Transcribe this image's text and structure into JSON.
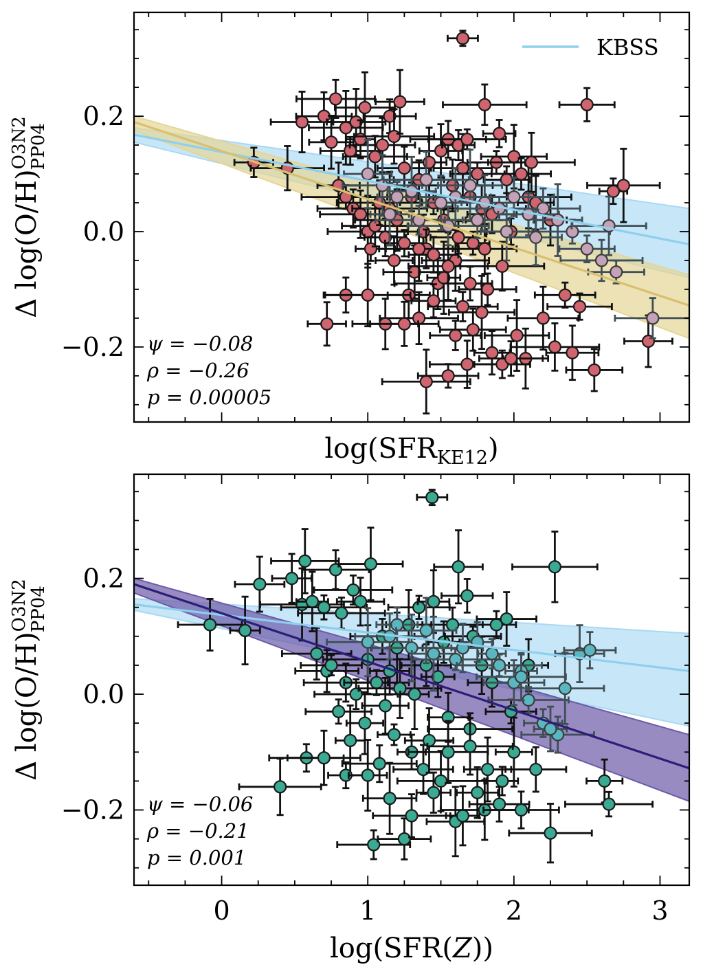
{
  "chart_data": [
    {
      "type": "scatter",
      "panel": "top",
      "xlabel_main": "log(SFR",
      "xlabel_sub": "KE12",
      "xlabel_close": ")",
      "ylabel_main": "Δ log(O/H)",
      "ylabel_sup": "O3N2",
      "ylabel_sub": "PP04",
      "xlim": [
        -0.6,
        3.2
      ],
      "ylim": [
        -0.33,
        0.38
      ],
      "x_ticks": [
        0,
        1,
        2,
        3
      ],
      "y_ticks": [
        -0.2,
        0.0,
        0.2
      ],
      "y_tick_labels": [
        "−0.2",
        "0.0",
        "0.2"
      ],
      "x_tick_labels": [],
      "point_color": "#d0646f",
      "kbss_point_color": "#c4a2b8",
      "legend": {
        "label": "KBSS",
        "color": "#8ecfee",
        "placement": "top-right"
      },
      "stats": {
        "psi": "ψ = −0.08",
        "rho": "ρ = −0.26",
        "p": "p = 0.00005"
      },
      "fits": [
        {
          "name": "KBSS",
          "color": "#8ecfee",
          "band_color": "#a9d9f3",
          "x": [
            -0.6,
            3.2
          ],
          "y": [
            0.168,
            -0.022
          ],
          "band_upper": [
            0.18,
            0.04
          ],
          "band_lower": [
            0.155,
            -0.08
          ]
        },
        {
          "name": "sample",
          "color": "#d8c070",
          "band_color": "#e5d596",
          "x": [
            -0.6,
            3.2
          ],
          "y": [
            0.19,
            -0.128
          ],
          "band_upper": [
            0.2,
            -0.075
          ],
          "band_lower": [
            0.175,
            -0.185
          ]
        }
      ],
      "points": [
        [
          0.22,
          0.12
        ],
        [
          0.45,
          0.11
        ],
        [
          0.55,
          0.19
        ],
        [
          0.7,
          0.2
        ],
        [
          0.75,
          0.155
        ],
        [
          0.78,
          0.23
        ],
        [
          0.85,
          0.18
        ],
        [
          0.92,
          0.19
        ],
        [
          0.98,
          0.215
        ],
        [
          0.88,
          0.14
        ],
        [
          0.95,
          0.16
        ],
        [
          1.05,
          0.13
        ],
        [
          1.1,
          0.15
        ],
        [
          1.15,
          0.2
        ],
        [
          1.18,
          0.165
        ],
        [
          1.22,
          0.225
        ],
        [
          1.25,
          0.11
        ],
        [
          0.8,
          0.08
        ],
        [
          0.85,
          0.06
        ],
        [
          0.9,
          0.04
        ],
        [
          0.95,
          0.03
        ],
        [
          1.0,
          0.0
        ],
        [
          1.02,
          -0.03
        ],
        [
          1.05,
          0.01
        ],
        [
          1.08,
          0.05
        ],
        [
          1.12,
          -0.01
        ],
        [
          1.15,
          0.04
        ],
        [
          1.18,
          -0.05
        ],
        [
          1.2,
          0.02
        ],
        [
          1.25,
          -0.02
        ],
        [
          1.3,
          0.06
        ],
        [
          1.32,
          -0.07
        ],
        [
          1.35,
          0.09
        ],
        [
          1.38,
          0.0
        ],
        [
          1.4,
          -0.03
        ],
        [
          1.42,
          0.12
        ],
        [
          1.45,
          0.05
        ],
        [
          1.48,
          -0.09
        ],
        [
          1.5,
          0.14
        ],
        [
          1.52,
          0.02
        ],
        [
          1.55,
          0.16
        ],
        [
          1.58,
          0.08
        ],
        [
          1.6,
          -0.05
        ],
        [
          1.62,
          0.15
        ],
        [
          1.65,
          0.11
        ],
        [
          1.68,
          0.16
        ],
        [
          1.7,
          0.06
        ],
        [
          1.72,
          -0.02
        ],
        [
          1.75,
          0.1
        ],
        [
          1.78,
          0.04
        ],
        [
          1.8,
          0.22
        ],
        [
          1.82,
          -0.1
        ],
        [
          1.85,
          0.03
        ],
        [
          1.88,
          0.12
        ],
        [
          1.9,
          0.17
        ],
        [
          1.92,
          -0.06
        ],
        [
          1.95,
          0.09
        ],
        [
          1.98,
          0.0
        ],
        [
          2.0,
          0.13
        ],
        [
          2.02,
          -0.18
        ],
        [
          2.05,
          0.1
        ],
        [
          2.08,
          -0.22
        ],
        [
          2.1,
          0.06
        ],
        [
          2.12,
          0.12
        ],
        [
          2.15,
          0.05
        ],
        [
          2.2,
          -0.15
        ],
        [
          2.25,
          0.02
        ],
        [
          2.28,
          -0.2
        ],
        [
          2.35,
          -0.11
        ],
        [
          2.4,
          -0.21
        ],
        [
          2.45,
          -0.13
        ],
        [
          2.5,
          0.22
        ],
        [
          2.55,
          -0.24
        ],
        [
          2.68,
          0.07
        ],
        [
          2.75,
          0.08
        ],
        [
          2.92,
          -0.19
        ],
        [
          1.28,
          -0.11
        ],
        [
          1.35,
          -0.15
        ],
        [
          1.4,
          -0.26
        ],
        [
          1.45,
          -0.12
        ],
        [
          1.52,
          -0.08
        ],
        [
          1.55,
          -0.25
        ],
        [
          1.6,
          -0.18
        ],
        [
          1.65,
          -0.13
        ],
        [
          1.68,
          -0.23
        ],
        [
          1.72,
          -0.17
        ],
        [
          1.78,
          -0.14
        ],
        [
          1.85,
          -0.21
        ],
        [
          1.92,
          -0.23
        ],
        [
          1.98,
          -0.22
        ],
        [
          0.72,
          -0.16
        ],
        [
          0.85,
          -0.11
        ],
        [
          1.0,
          -0.11
        ],
        [
          1.12,
          -0.16
        ],
        [
          1.25,
          -0.16
        ],
        [
          1.35,
          -0.03
        ],
        [
          1.45,
          -0.04
        ],
        [
          1.55,
          -0.06
        ],
        [
          1.62,
          -0.01
        ],
        [
          1.7,
          -0.09
        ],
        [
          1.8,
          -0.03
        ]
      ],
      "kbss_points": [
        [
          1.0,
          0.1
        ],
        [
          1.1,
          0.08
        ],
        [
          1.2,
          0.06
        ],
        [
          1.3,
          0.07
        ],
        [
          1.4,
          0.09
        ],
        [
          1.5,
          0.05
        ],
        [
          1.6,
          0.06
        ],
        [
          1.7,
          0.08
        ],
        [
          1.8,
          0.05
        ],
        [
          1.9,
          0.04
        ],
        [
          2.0,
          0.06
        ],
        [
          2.1,
          0.03
        ],
        [
          2.2,
          0.04
        ],
        [
          2.3,
          0.02
        ],
        [
          2.4,
          0.0
        ],
        [
          2.5,
          -0.03
        ],
        [
          2.6,
          -0.05
        ],
        [
          2.7,
          -0.07
        ],
        [
          2.95,
          -0.15
        ],
        [
          2.65,
          0.01
        ],
        [
          1.15,
          0.03
        ],
        [
          1.35,
          0.02
        ],
        [
          1.55,
          0.01
        ],
        [
          1.75,
          0.02
        ],
        [
          1.95,
          0.0
        ],
        [
          2.15,
          -0.01
        ]
      ],
      "top_marker": [
        1.65,
        0.335
      ]
    },
    {
      "type": "scatter",
      "panel": "bottom",
      "xlabel_main": "log(SFR(",
      "xlabel_italic": "Z",
      "xlabel_close": "))",
      "ylabel_main": "Δ log(O/H)",
      "ylabel_sup": "O3N2",
      "ylabel_sub": "PP04",
      "xlim": [
        -0.6,
        3.2
      ],
      "ylim": [
        -0.33,
        0.38
      ],
      "x_ticks": [
        0,
        1,
        2,
        3
      ],
      "x_tick_labels": [
        "0",
        "1",
        "2",
        "3"
      ],
      "y_ticks": [
        -0.2,
        0.0,
        0.2
      ],
      "y_tick_labels": [
        "−0.2",
        "0.0",
        "0.2"
      ],
      "point_color": "#3aaa93",
      "kbss_point_color": "#5ab7c2",
      "stats": {
        "psi": "ψ = −0.06",
        "rho": "ρ = −0.21",
        "p": "p = 0.001"
      },
      "fits": [
        {
          "name": "KBSS",
          "color": "#8ecfee",
          "band_color": "#a9d9f3",
          "x": [
            -0.6,
            3.2
          ],
          "y": [
            0.155,
            0.04
          ],
          "band_upper": [
            0.165,
            0.105
          ],
          "band_lower": [
            0.145,
            -0.055
          ]
        },
        {
          "name": "sample",
          "color": "#2c1e78",
          "band_color": "#6c5aa8",
          "x": [
            -0.6,
            3.2
          ],
          "y": [
            0.19,
            -0.128
          ],
          "band_upper": [
            0.2,
            -0.07
          ],
          "band_lower": [
            0.175,
            -0.185
          ]
        }
      ],
      "points": [
        [
          -0.08,
          0.12
        ],
        [
          0.16,
          0.11
        ],
        [
          0.26,
          0.19
        ],
        [
          0.4,
          -0.16
        ],
        [
          0.48,
          0.2
        ],
        [
          0.55,
          0.155
        ],
        [
          0.57,
          0.23
        ],
        [
          0.58,
          -0.11
        ],
        [
          0.62,
          0.16
        ],
        [
          0.65,
          0.07
        ],
        [
          0.7,
          0.15
        ],
        [
          0.72,
          0.04
        ],
        [
          0.75,
          0.05
        ],
        [
          0.78,
          0.215
        ],
        [
          0.8,
          -0.03
        ],
        [
          0.82,
          0.14
        ],
        [
          0.85,
          0.02
        ],
        [
          0.88,
          -0.08
        ],
        [
          0.9,
          0.18
        ],
        [
          0.92,
          0.0
        ],
        [
          0.95,
          0.16
        ],
        [
          0.98,
          -0.05
        ],
        [
          1.0,
          0.06
        ],
        [
          1.02,
          0.225
        ],
        [
          1.04,
          -0.26
        ],
        [
          1.06,
          0.02
        ],
        [
          1.08,
          -0.12
        ],
        [
          1.1,
          0.1
        ],
        [
          1.12,
          -0.02
        ],
        [
          1.15,
          0.04
        ],
        [
          1.18,
          -0.07
        ],
        [
          1.2,
          0.08
        ],
        [
          1.22,
          0.01
        ],
        [
          1.25,
          -0.25
        ],
        [
          1.28,
          0.12
        ],
        [
          1.3,
          -0.1
        ],
        [
          1.32,
          0.0
        ],
        [
          1.35,
          0.15
        ],
        [
          1.38,
          -0.13
        ],
        [
          1.4,
          0.05
        ],
        [
          1.42,
          -0.08
        ],
        [
          1.45,
          0.16
        ],
        [
          1.48,
          0.03
        ],
        [
          1.5,
          -0.15
        ],
        [
          1.52,
          0.09
        ],
        [
          1.55,
          -0.04
        ],
        [
          1.58,
          0.12
        ],
        [
          1.6,
          -0.22
        ],
        [
          1.62,
          0.22
        ],
        [
          1.65,
          -0.21
        ],
        [
          1.68,
          0.17
        ],
        [
          1.7,
          -0.06
        ],
        [
          1.72,
          0.1
        ],
        [
          1.75,
          -0.17
        ],
        [
          1.78,
          0.05
        ],
        [
          1.8,
          -0.2
        ],
        [
          1.85,
          0.02
        ],
        [
          1.88,
          0.12
        ],
        [
          1.9,
          -0.19
        ],
        [
          1.92,
          -0.15
        ],
        [
          1.95,
          0.13
        ],
        [
          1.98,
          -0.03
        ],
        [
          2.0,
          -0.1
        ],
        [
          2.05,
          -0.2
        ],
        [
          2.1,
          0.05
        ],
        [
          2.15,
          -0.13
        ],
        [
          2.25,
          -0.24
        ],
        [
          2.28,
          0.22
        ],
        [
          2.62,
          -0.15
        ],
        [
          2.65,
          -0.19
        ],
        [
          0.7,
          -0.11
        ],
        [
          0.85,
          -0.14
        ],
        [
          1.0,
          -0.14
        ],
        [
          1.15,
          -0.18
        ],
        [
          1.3,
          -0.21
        ],
        [
          1.45,
          -0.17
        ],
        [
          1.55,
          -0.1
        ],
        [
          1.7,
          -0.09
        ],
        [
          1.82,
          -0.13
        ]
      ],
      "kbss_points": [
        [
          1.0,
          0.09
        ],
        [
          1.15,
          0.1
        ],
        [
          1.3,
          0.08
        ],
        [
          1.45,
          0.07
        ],
        [
          1.6,
          0.06
        ],
        [
          1.75,
          0.09
        ],
        [
          1.9,
          0.05
        ],
        [
          2.05,
          0.04
        ],
        [
          2.2,
          -0.05
        ],
        [
          2.3,
          -0.07
        ],
        [
          2.45,
          0.07
        ],
        [
          2.52,
          0.076
        ],
        [
          2.35,
          0.01
        ],
        [
          1.2,
          0.12
        ],
        [
          1.4,
          0.11
        ],
        [
          1.65,
          0.08
        ],
        [
          1.85,
          0.07
        ],
        [
          2.0,
          0.02
        ],
        [
          2.1,
          -0.01
        ],
        [
          2.25,
          -0.06
        ],
        [
          2.05,
          0.03
        ]
      ],
      "top_marker": [
        1.44,
        0.34
      ]
    }
  ]
}
